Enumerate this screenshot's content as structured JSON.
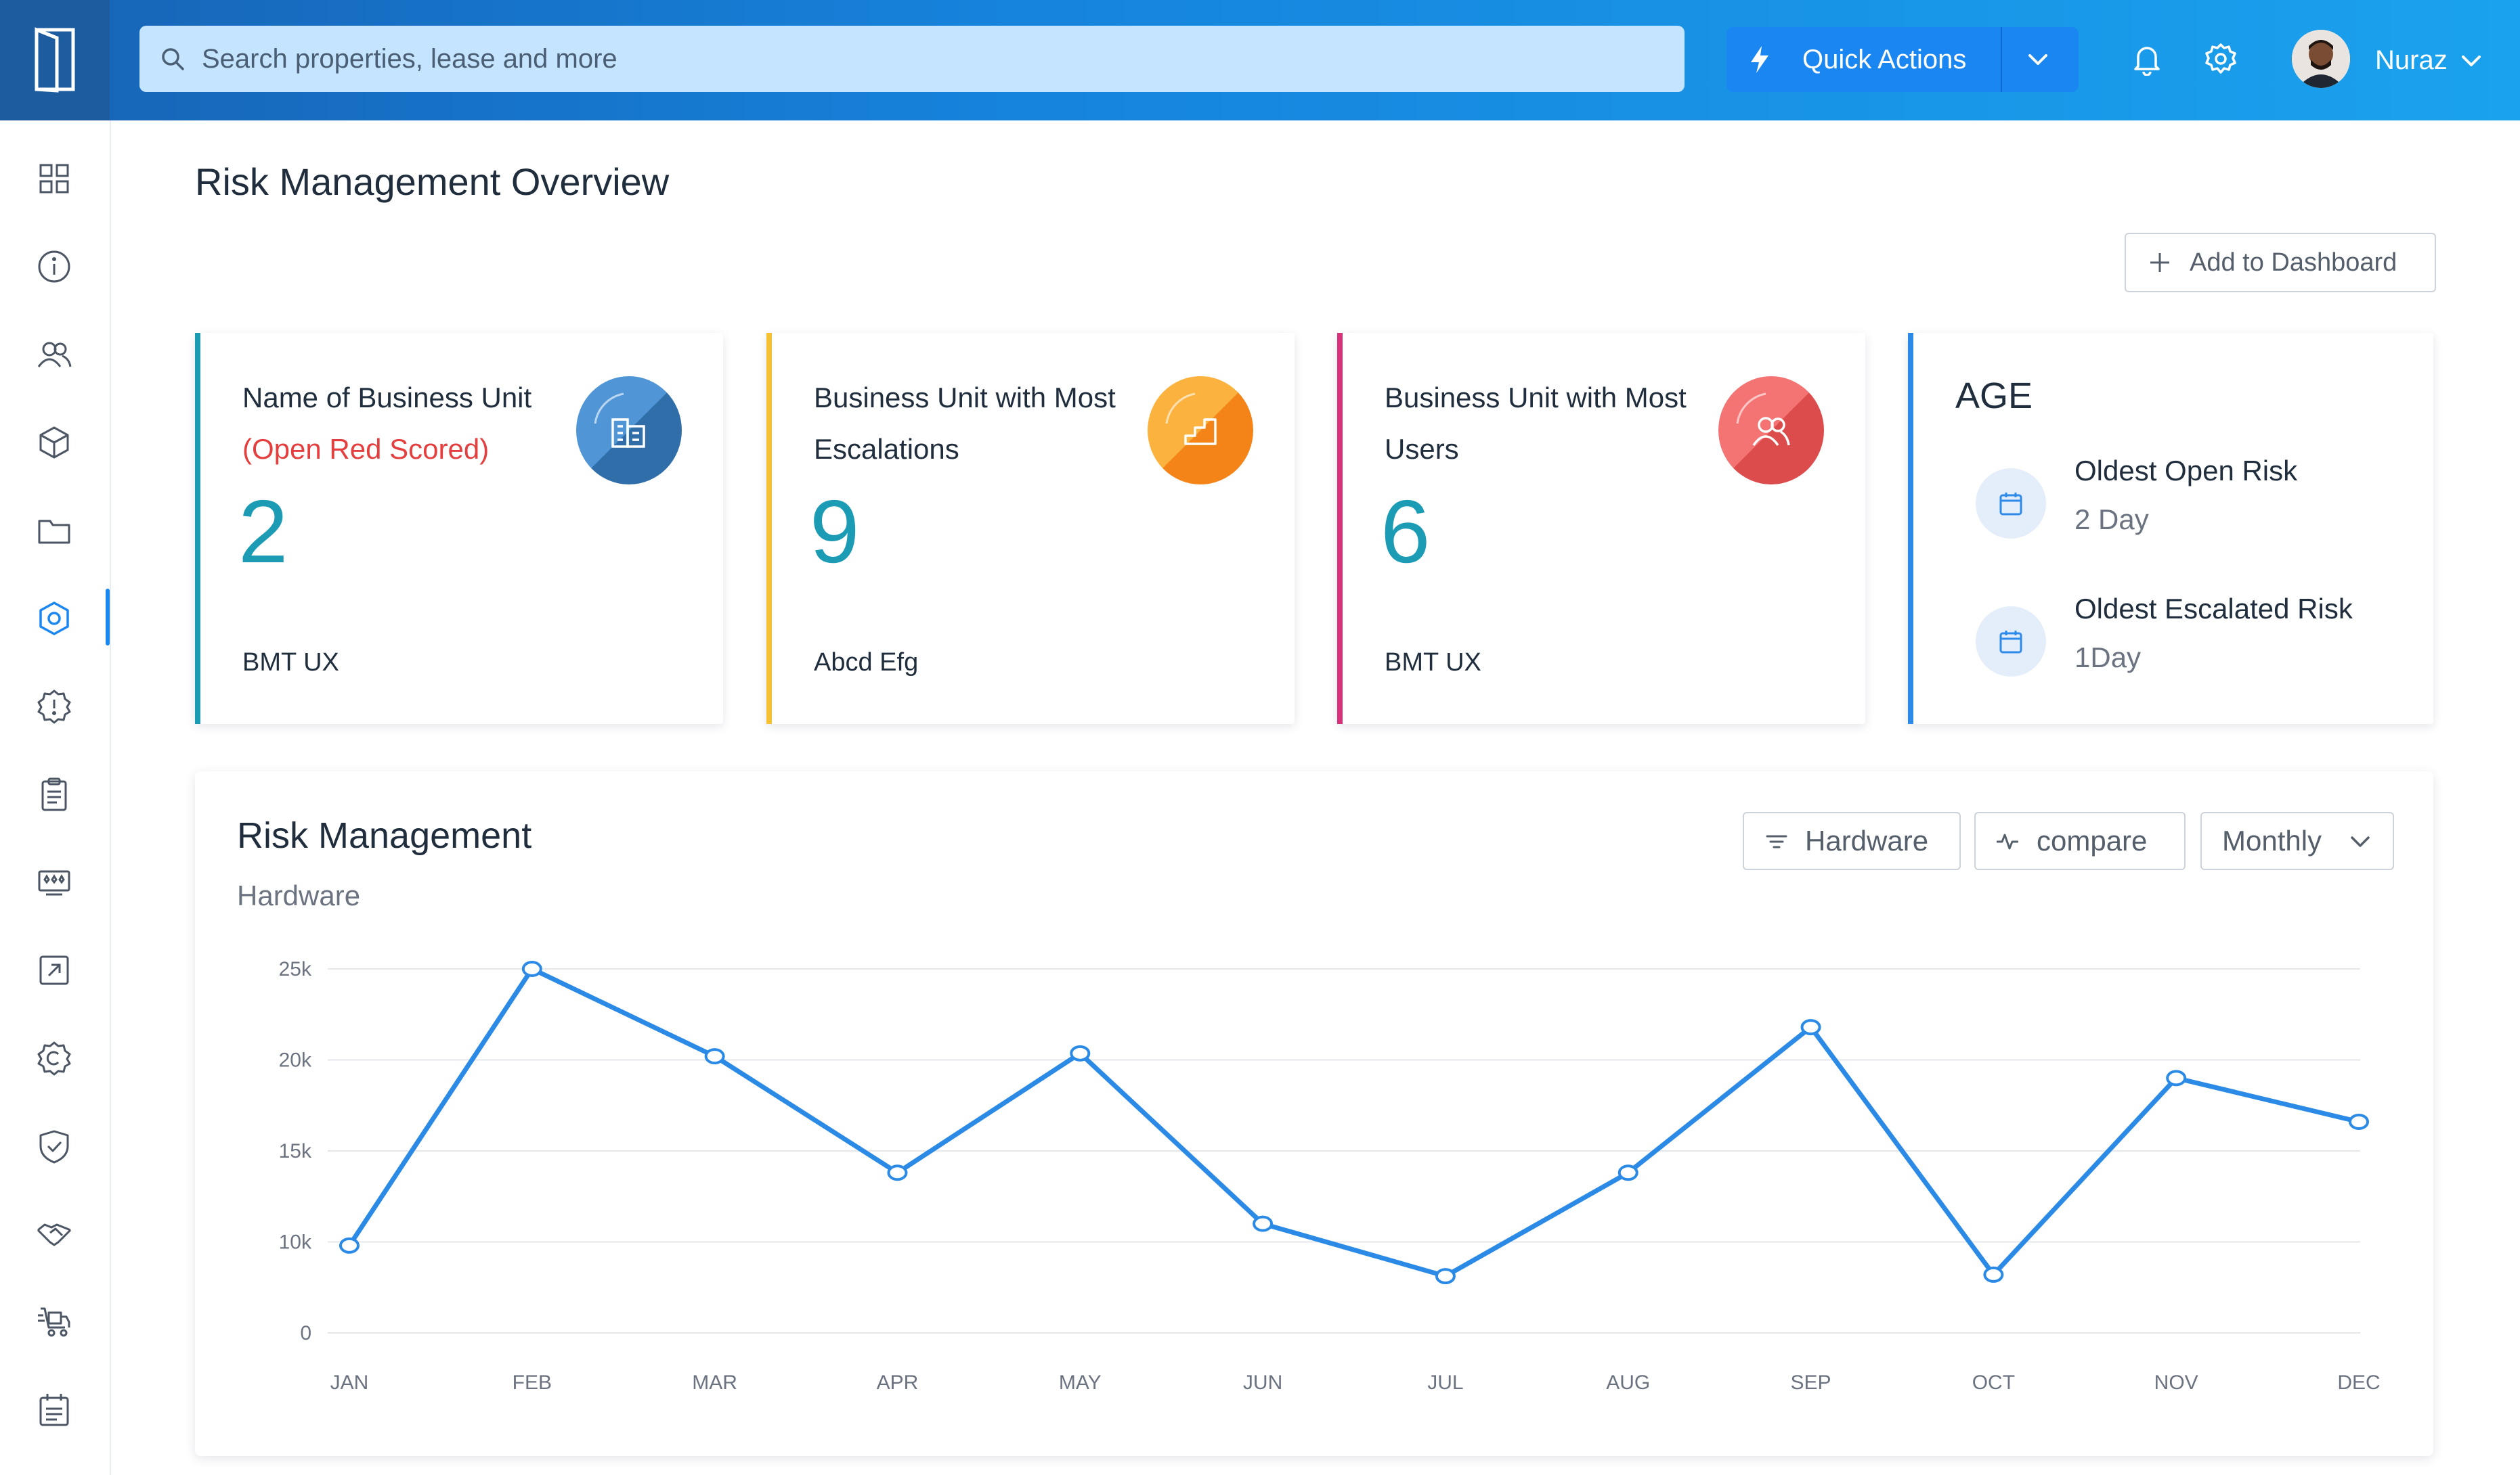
{
  "search": {
    "placeholder": "Search properties, lease and more"
  },
  "quick_actions": {
    "label": "Quick Actions"
  },
  "user": {
    "name": "Nuraz"
  },
  "page": {
    "title": "Risk Management Overview",
    "add_button": "Add to Dashboard"
  },
  "cards": [
    {
      "title": "Name of Business Unit",
      "subtitle": "(Open Red Scored)",
      "value": "2",
      "footer": "BMT UX",
      "accent": "#1b9cb4",
      "icon": "building-icon",
      "badge_color": "#3b7fc4"
    },
    {
      "title": "Business Unit with Most Escalations",
      "value": "9",
      "footer": "Abcd Efg",
      "accent": "#f6c233",
      "icon": "stairs-icon",
      "badge_color": "#f8911e"
    },
    {
      "title": "Business Unit with Most Users",
      "value": "6",
      "footer": "BMT UX",
      "accent": "#d9307a",
      "icon": "users-icon",
      "badge_color": "#e85a5a"
    }
  ],
  "age": {
    "title": "AGE",
    "accent": "#2d8ae8",
    "items": [
      {
        "label": "Oldest Open Risk",
        "value": "2 Day"
      },
      {
        "label": "Oldest Escalated Risk",
        "value": "1Day"
      }
    ]
  },
  "risk_chart": {
    "title": "Risk Management",
    "subtitle": "Hardware",
    "filters": {
      "category": "Hardware",
      "compare": "compare",
      "period": "Monthly"
    }
  },
  "sidebar": {
    "items": [
      "dashboard-icon",
      "info-icon",
      "users-icon",
      "cube-icon",
      "folder-icon",
      "settings-hexagon-icon",
      "alert-icon",
      "clipboard-icon",
      "ticket-icon",
      "external-link-icon",
      "copyright-icon",
      "shield-check-icon",
      "handshake-icon",
      "delivery-icon",
      "calendar-list-icon"
    ],
    "active_index": 5
  },
  "colors": {
    "primary": "#1a86f2",
    "line": "#2b8ae6",
    "value_teal": "#1b9cb4"
  },
  "chart_data": {
    "type": "line",
    "categories": [
      "JAN",
      "FEB",
      "MAR",
      "APR",
      "MAY",
      "JUN",
      "JUL",
      "AUG",
      "SEP",
      "OCT",
      "NOV",
      "DEC"
    ],
    "series": [
      {
        "values": [
          6000,
          25000,
          19000,
          11000,
          19200,
          7500,
          3900,
          11000,
          21000,
          4000,
          17500,
          14500
        ]
      }
    ],
    "yticks": [
      "25k",
      "20k",
      "15k",
      "10k",
      "0"
    ],
    "ylim": [
      0,
      25000
    ],
    "grid": true
  }
}
